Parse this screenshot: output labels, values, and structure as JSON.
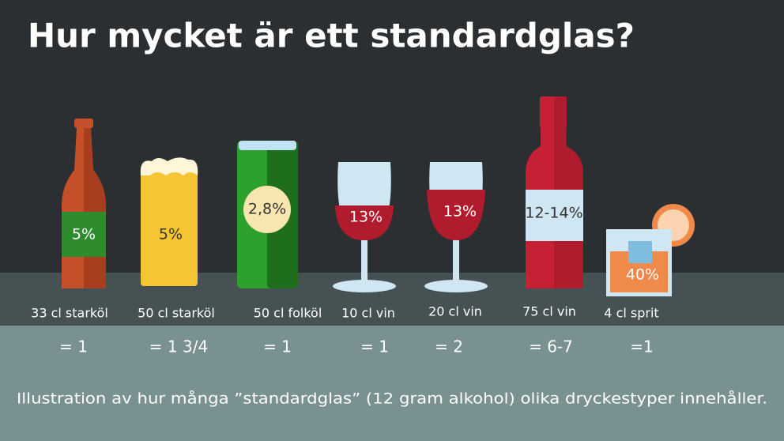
{
  "header": {
    "title": "Hur mycket är ett standardglas?"
  },
  "items": [
    {
      "label": "33 cl starköl",
      "percent": "5%",
      "count": "= 1"
    },
    {
      "label": "50 cl starköl",
      "percent": "5%",
      "count": "= 1 3/4"
    },
    {
      "label": "50 cl folköl",
      "percent": "2,8%",
      "count": "= 1"
    },
    {
      "label": "10 cl vin",
      "percent": "13%",
      "count": "= 1"
    },
    {
      "label": "20 cl vin",
      "percent": "13%",
      "count": "= 2"
    },
    {
      "label": "75 cl vin",
      "percent": "12-14%",
      "count": "= 6-7"
    },
    {
      "label": "4 cl sprit",
      "percent": "40%",
      "count": "=1"
    }
  ],
  "caption": "Illustration av hur många ”standardglas” (12 gram alkohol) olika dryckestyper innehåller."
}
